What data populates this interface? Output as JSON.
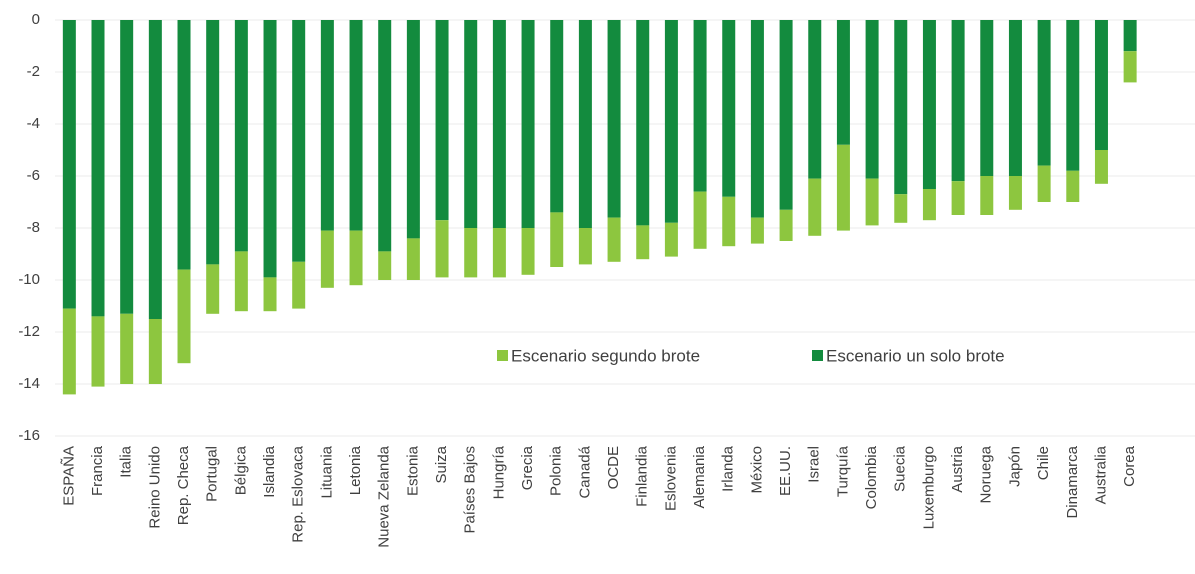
{
  "chart_data": {
    "type": "stacked-bar",
    "categories": [
      "ESPAÑA",
      "Francia",
      "Italia",
      "Reino Unido",
      "Rep. Checa",
      "Portugal",
      "Bélgica",
      "Islandia",
      "Rep. Eslovaca",
      "Lituania",
      "Letonia",
      "Nueva Zelanda",
      "Estonia",
      "Suiza",
      "Países Bajos",
      "Hungría",
      "Grecia",
      "Polonia",
      "Canadá",
      "OCDE",
      "Finlandia",
      "Eslovenia",
      "Alemania",
      "Irlanda",
      "México",
      "EE.UU.",
      "Israel",
      "Turquía",
      "Colombia",
      "Suecia",
      "Luxemburgo",
      "Austria",
      "Noruega",
      "Japón",
      "Chile",
      "Dinamarca",
      "Australia",
      "Corea"
    ],
    "series": [
      {
        "name": "Escenario un solo brote",
        "color": "#138b3e",
        "values": [
          -11.1,
          -11.4,
          -11.3,
          -11.5,
          -9.6,
          -9.4,
          -8.9,
          -9.9,
          -9.3,
          -8.1,
          -8.1,
          -8.9,
          -8.4,
          -7.7,
          -8.0,
          -8.0,
          -8.0,
          -7.4,
          -8.0,
          -7.6,
          -7.9,
          -7.8,
          -6.6,
          -6.8,
          -7.6,
          -7.3,
          -6.1,
          -4.8,
          -6.1,
          -6.7,
          -6.5,
          -6.2,
          -6.0,
          -6.0,
          -5.6,
          -5.8,
          -5.0,
          -1.2
        ]
      },
      {
        "name": "Escenario segundo brote",
        "color": "#8dc63f",
        "values": [
          -3.3,
          -2.7,
          -2.7,
          -2.5,
          -3.6,
          -1.9,
          -2.3,
          -1.3,
          -1.8,
          -2.2,
          -2.1,
          -1.1,
          -1.6,
          -2.2,
          -1.9,
          -1.9,
          -1.8,
          -2.1,
          -1.4,
          -1.7,
          -1.3,
          -1.3,
          -2.2,
          -1.9,
          -1.0,
          -1.2,
          -2.2,
          -3.3,
          -1.8,
          -1.1,
          -1.2,
          -1.3,
          -1.5,
          -1.3,
          -1.4,
          -1.2,
          -1.3,
          -1.2
        ]
      }
    ],
    "ylim": [
      -16,
      0
    ],
    "yticks": [
      0,
      -2,
      -4,
      -6,
      -8,
      -10,
      -12,
      -14,
      -16
    ],
    "grid": true
  }
}
